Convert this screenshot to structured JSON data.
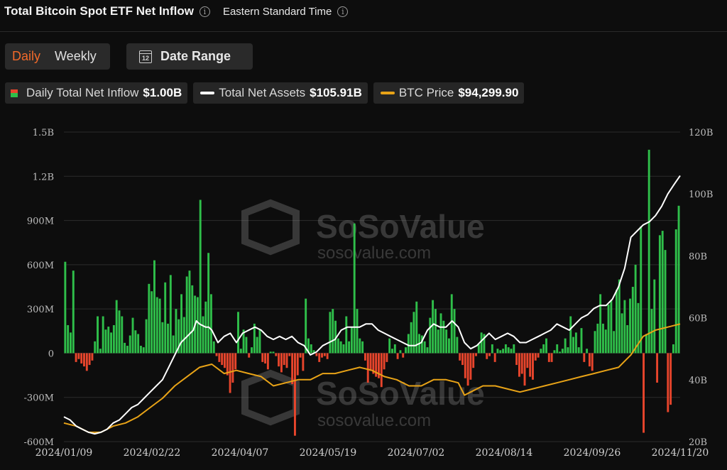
{
  "header": {
    "title": "Total Bitcoin Spot ETF Net Inflow",
    "timezone": "Eastern Standard Time"
  },
  "toggle": {
    "daily": "Daily",
    "weekly": "Weekly",
    "selected": "Daily"
  },
  "date_range": {
    "label": "Date Range",
    "icon": "calendar-icon",
    "icon_text": "12"
  },
  "legend": {
    "inflow": {
      "label": "Daily Total Net Inflow",
      "value": "$1.00B"
    },
    "assets": {
      "label": "Total Net Assets",
      "value": "$105.91B"
    },
    "btc": {
      "label": "BTC Price",
      "value": "$94,299.90"
    }
  },
  "watermark": {
    "brand": "SoSoValue",
    "url": "sosovalue.com"
  },
  "colors": {
    "positive": "#2fbf4a",
    "negative": "#e8452c",
    "assets_line": "#ffffff",
    "btc_line": "#e8a317",
    "accent": "#f26a2a"
  },
  "chart_data": {
    "type": "bar",
    "title": "Total Bitcoin Spot ETF Net Inflow",
    "x_ticks": [
      "2024/01/09",
      "2024/02/22",
      "2024/04/07",
      "2024/05/19",
      "2024/07/02",
      "2024/08/14",
      "2024/09/26",
      "2024/11/20"
    ],
    "y_left": {
      "ticks": [
        "1.5B",
        "1.2B",
        "900M",
        "600M",
        "300M",
        "0",
        "-300M",
        "-600M"
      ],
      "range": [
        -600,
        1500
      ],
      "unit": "M"
    },
    "y_right": {
      "ticks": [
        "120B",
        "100B",
        "80B",
        "60B",
        "40B",
        "20B"
      ],
      "range": [
        20,
        120
      ],
      "unit": "B"
    },
    "grid": true,
    "series": [
      {
        "name": "Daily Total Net Inflow",
        "kind": "bar",
        "unit": "M",
        "values": [
          620,
          190,
          140,
          560,
          -60,
          -40,
          -70,
          -90,
          -120,
          -80,
          -50,
          80,
          250,
          30,
          250,
          160,
          180,
          140,
          190,
          360,
          290,
          250,
          70,
          50,
          120,
          240,
          155,
          130,
          50,
          40,
          230,
          470,
          420,
          630,
          380,
          370,
          210,
          480,
          200,
          530,
          120,
          300,
          230,
          400,
          245,
          520,
          560,
          460,
          390,
          380,
          1040,
          250,
          350,
          680,
          400,
          80,
          -20,
          -60,
          -80,
          -100,
          -150,
          -270,
          -200,
          -110,
          280,
          30,
          160,
          110,
          -30,
          40,
          200,
          110,
          160,
          -60,
          -70,
          -110,
          10,
          10,
          -20,
          -90,
          -130,
          -80,
          -100,
          -20,
          -210,
          -560,
          -150,
          -30,
          -120,
          370,
          100,
          60,
          20,
          -20,
          -60,
          -30,
          -20,
          -40,
          280,
          300,
          220,
          100,
          80,
          60,
          250,
          80,
          180,
          880,
          300,
          100,
          80,
          -50,
          -200,
          -120,
          -140,
          -160,
          -170,
          -230,
          -110,
          -60,
          100,
          30,
          60,
          -40,
          20,
          -30,
          40,
          130,
          210,
          280,
          350,
          130,
          120,
          80,
          40,
          240,
          360,
          300,
          160,
          270,
          220,
          160,
          100,
          400,
          300,
          110,
          -50,
          -80,
          -170,
          -220,
          -180,
          -100,
          -20,
          60,
          140,
          130,
          -40,
          -20,
          60,
          -60,
          30,
          20,
          30,
          60,
          40,
          30,
          60,
          -80,
          -160,
          -140,
          -220,
          -100,
          -160,
          -180,
          -50,
          -30,
          30,
          60,
          100,
          -60,
          -60,
          20,
          60,
          10,
          30,
          100,
          40,
          250,
          110,
          140,
          40,
          170,
          -60,
          30,
          -90,
          -120,
          150,
          200,
          400,
          200,
          160,
          330,
          360,
          150,
          430,
          500,
          270,
          360,
          190,
          370,
          450,
          600,
          340,
          860,
          -540,
          130,
          1380,
          300,
          500,
          -200,
          800,
          830,
          700,
          -400,
          -350,
          60,
          840,
          1000
        ]
      },
      {
        "name": "Total Net Assets",
        "kind": "line",
        "unit": "B",
        "points": [
          [
            0,
            28
          ],
          [
            0.01,
            27
          ],
          [
            0.02,
            25
          ],
          [
            0.03,
            24
          ],
          [
            0.04,
            23
          ],
          [
            0.05,
            22.5
          ],
          [
            0.06,
            23
          ],
          [
            0.07,
            24
          ],
          [
            0.08,
            26
          ],
          [
            0.09,
            27
          ],
          [
            0.1,
            29
          ],
          [
            0.11,
            31
          ],
          [
            0.12,
            32
          ],
          [
            0.13,
            34
          ],
          [
            0.14,
            36
          ],
          [
            0.15,
            38
          ],
          [
            0.16,
            40
          ],
          [
            0.17,
            44
          ],
          [
            0.18,
            48
          ],
          [
            0.19,
            52
          ],
          [
            0.2,
            54
          ],
          [
            0.21,
            56
          ],
          [
            0.215,
            59
          ],
          [
            0.22,
            58
          ],
          [
            0.23,
            57
          ],
          [
            0.235,
            57
          ],
          [
            0.24,
            56
          ],
          [
            0.25,
            52
          ],
          [
            0.26,
            54
          ],
          [
            0.27,
            55
          ],
          [
            0.28,
            52
          ],
          [
            0.29,
            55
          ],
          [
            0.3,
            56
          ],
          [
            0.31,
            57
          ],
          [
            0.32,
            56
          ],
          [
            0.33,
            54
          ],
          [
            0.34,
            53
          ],
          [
            0.35,
            54
          ],
          [
            0.36,
            53
          ],
          [
            0.37,
            54
          ],
          [
            0.38,
            52
          ],
          [
            0.39,
            51
          ],
          [
            0.4,
            48
          ],
          [
            0.41,
            49
          ],
          [
            0.42,
            51
          ],
          [
            0.43,
            52
          ],
          [
            0.44,
            53
          ],
          [
            0.45,
            56
          ],
          [
            0.46,
            57
          ],
          [
            0.47,
            57
          ],
          [
            0.48,
            57
          ],
          [
            0.49,
            58
          ],
          [
            0.5,
            58
          ],
          [
            0.51,
            56
          ],
          [
            0.52,
            55
          ],
          [
            0.53,
            54
          ],
          [
            0.54,
            53
          ],
          [
            0.55,
            52
          ],
          [
            0.56,
            51
          ],
          [
            0.57,
            51
          ],
          [
            0.58,
            52
          ],
          [
            0.59,
            56
          ],
          [
            0.6,
            58
          ],
          [
            0.61,
            57
          ],
          [
            0.62,
            57
          ],
          [
            0.63,
            59
          ],
          [
            0.64,
            57
          ],
          [
            0.65,
            52
          ],
          [
            0.66,
            50
          ],
          [
            0.67,
            51
          ],
          [
            0.68,
            53
          ],
          [
            0.69,
            55
          ],
          [
            0.7,
            53
          ],
          [
            0.71,
            54
          ],
          [
            0.72,
            55
          ],
          [
            0.73,
            54
          ],
          [
            0.74,
            52
          ],
          [
            0.75,
            52
          ],
          [
            0.76,
            53
          ],
          [
            0.77,
            54
          ],
          [
            0.78,
            55
          ],
          [
            0.79,
            56
          ],
          [
            0.8,
            58
          ],
          [
            0.81,
            57
          ],
          [
            0.82,
            56
          ],
          [
            0.83,
            58
          ],
          [
            0.84,
            60
          ],
          [
            0.85,
            61
          ],
          [
            0.86,
            63
          ],
          [
            0.87,
            64
          ],
          [
            0.88,
            64
          ],
          [
            0.89,
            66
          ],
          [
            0.9,
            70
          ],
          [
            0.91,
            76
          ],
          [
            0.92,
            86
          ],
          [
            0.93,
            88
          ],
          [
            0.94,
            90
          ],
          [
            0.95,
            91
          ],
          [
            0.96,
            93
          ],
          [
            0.97,
            96
          ],
          [
            0.98,
            100
          ],
          [
            0.99,
            103
          ],
          [
            1.0,
            105.91
          ]
        ]
      },
      {
        "name": "BTC Price",
        "kind": "line",
        "points": [
          [
            0,
            26
          ],
          [
            0.02,
            25
          ],
          [
            0.04,
            23
          ],
          [
            0.06,
            23
          ],
          [
            0.08,
            25
          ],
          [
            0.1,
            26
          ],
          [
            0.12,
            28
          ],
          [
            0.14,
            31
          ],
          [
            0.16,
            34
          ],
          [
            0.18,
            38
          ],
          [
            0.2,
            41
          ],
          [
            0.22,
            44
          ],
          [
            0.24,
            45
          ],
          [
            0.26,
            42
          ],
          [
            0.28,
            43
          ],
          [
            0.3,
            42
          ],
          [
            0.32,
            41
          ],
          [
            0.34,
            38
          ],
          [
            0.36,
            39
          ],
          [
            0.38,
            40
          ],
          [
            0.4,
            40
          ],
          [
            0.42,
            42
          ],
          [
            0.44,
            42
          ],
          [
            0.46,
            43
          ],
          [
            0.48,
            44
          ],
          [
            0.5,
            43
          ],
          [
            0.52,
            41
          ],
          [
            0.54,
            40
          ],
          [
            0.56,
            38
          ],
          [
            0.58,
            38
          ],
          [
            0.6,
            40
          ],
          [
            0.62,
            40
          ],
          [
            0.64,
            39
          ],
          [
            0.65,
            35
          ],
          [
            0.66,
            36
          ],
          [
            0.68,
            38
          ],
          [
            0.7,
            38
          ],
          [
            0.72,
            37
          ],
          [
            0.74,
            36
          ],
          [
            0.76,
            37
          ],
          [
            0.78,
            38
          ],
          [
            0.8,
            39
          ],
          [
            0.82,
            40
          ],
          [
            0.84,
            41
          ],
          [
            0.86,
            42
          ],
          [
            0.88,
            43
          ],
          [
            0.9,
            44
          ],
          [
            0.92,
            48
          ],
          [
            0.94,
            54
          ],
          [
            0.96,
            56
          ],
          [
            0.98,
            57
          ],
          [
            1.0,
            58
          ]
        ]
      }
    ]
  }
}
